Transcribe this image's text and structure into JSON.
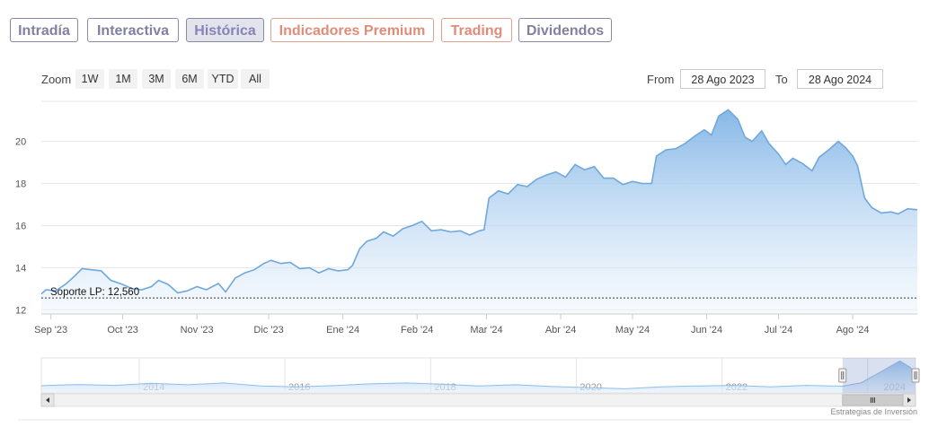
{
  "tabs": [
    {
      "label": "Intradía",
      "active": false,
      "premium": false
    },
    {
      "label": "Interactiva",
      "active": false,
      "premium": false
    },
    {
      "label": "Histórica",
      "active": true,
      "premium": false
    },
    {
      "label": "Indicadores Premium",
      "active": false,
      "premium": true
    },
    {
      "label": "Trading",
      "active": false,
      "premium": true
    },
    {
      "label": "Dividendos",
      "active": false,
      "premium": false
    }
  ],
  "zoom": {
    "label": "Zoom",
    "buttons": [
      "1W",
      "1M",
      "3M",
      "6M",
      "YTD",
      "All"
    ]
  },
  "range": {
    "from_label": "From",
    "from_value": "28 Ago 2023",
    "to_label": "To",
    "to_value": "28 Ago 2024"
  },
  "credit": "Estrategias de Inversión",
  "colors": {
    "line": "#6fa8dc",
    "fill_top": "#80b4e6",
    "fill_bottom": "#eef5fc",
    "support": "#333333"
  },
  "chart_data": {
    "type": "area",
    "x_ticks": [
      "Sep '23",
      "Oct '23",
      "Nov '23",
      "Dic '23",
      "Ene '24",
      "Feb '24",
      "Mar '24",
      "Abr '24",
      "May '24",
      "Jun '24",
      "Jul '24",
      "Ago '24"
    ],
    "y_ticks": [
      12,
      14,
      16,
      18,
      20
    ],
    "ylim": [
      11.8,
      21.9
    ],
    "xlim": [
      "2023-08-28",
      "2024-08-28"
    ],
    "grid": true,
    "support_line": {
      "label": "Soporte LP: 12,560",
      "value": 12.56
    },
    "series": [
      {
        "points": [
          [
            "2023-08-28",
            12.75
          ],
          [
            "2023-08-30",
            12.95
          ],
          [
            "2023-09-03",
            12.9
          ],
          [
            "2023-09-07",
            13.2
          ],
          [
            "2023-09-10",
            13.5
          ],
          [
            "2023-09-14",
            13.95
          ],
          [
            "2023-09-18",
            13.9
          ],
          [
            "2023-09-22",
            13.85
          ],
          [
            "2023-09-26",
            13.4
          ],
          [
            "2023-10-01",
            13.2
          ],
          [
            "2023-10-05",
            13.0
          ],
          [
            "2023-10-09",
            12.95
          ],
          [
            "2023-10-13",
            13.1
          ],
          [
            "2023-10-16",
            13.4
          ],
          [
            "2023-10-20",
            13.2
          ],
          [
            "2023-10-24",
            12.8
          ],
          [
            "2023-10-28",
            12.9
          ],
          [
            "2023-11-01",
            13.1
          ],
          [
            "2023-11-05",
            12.95
          ],
          [
            "2023-11-10",
            13.25
          ],
          [
            "2023-11-13",
            12.85
          ],
          [
            "2023-11-17",
            13.5
          ],
          [
            "2023-11-21",
            13.75
          ],
          [
            "2023-11-25",
            13.9
          ],
          [
            "2023-11-29",
            14.2
          ],
          [
            "2023-12-02",
            14.35
          ],
          [
            "2023-12-06",
            14.2
          ],
          [
            "2023-12-10",
            14.25
          ],
          [
            "2023-12-14",
            13.95
          ],
          [
            "2023-12-18",
            14.0
          ],
          [
            "2023-12-22",
            13.75
          ],
          [
            "2023-12-26",
            13.95
          ],
          [
            "2023-12-30",
            13.85
          ],
          [
            "2024-01-03",
            13.9
          ],
          [
            "2024-01-05",
            14.1
          ],
          [
            "2024-01-08",
            14.9
          ],
          [
            "2024-01-11",
            15.25
          ],
          [
            "2024-01-15",
            15.4
          ],
          [
            "2024-01-18",
            15.7
          ],
          [
            "2024-01-22",
            15.5
          ],
          [
            "2024-01-26",
            15.85
          ],
          [
            "2024-01-30",
            16.0
          ],
          [
            "2024-02-03",
            16.2
          ],
          [
            "2024-02-07",
            15.75
          ],
          [
            "2024-02-11",
            15.8
          ],
          [
            "2024-02-15",
            15.7
          ],
          [
            "2024-02-19",
            15.75
          ],
          [
            "2024-02-23",
            15.55
          ],
          [
            "2024-02-27",
            15.75
          ],
          [
            "2024-02-29",
            15.8
          ],
          [
            "2024-03-02",
            17.3
          ],
          [
            "2024-03-06",
            17.65
          ],
          [
            "2024-03-10",
            17.5
          ],
          [
            "2024-03-14",
            17.95
          ],
          [
            "2024-03-18",
            17.85
          ],
          [
            "2024-03-22",
            18.2
          ],
          [
            "2024-03-26",
            18.4
          ],
          [
            "2024-03-30",
            18.55
          ],
          [
            "2024-04-03",
            18.3
          ],
          [
            "2024-04-07",
            18.9
          ],
          [
            "2024-04-11",
            18.65
          ],
          [
            "2024-04-15",
            18.8
          ],
          [
            "2024-04-19",
            18.25
          ],
          [
            "2024-04-23",
            18.25
          ],
          [
            "2024-04-27",
            17.95
          ],
          [
            "2024-05-01",
            18.1
          ],
          [
            "2024-05-05",
            18.0
          ],
          [
            "2024-05-09",
            18.0
          ],
          [
            "2024-05-11",
            19.3
          ],
          [
            "2024-05-15",
            19.6
          ],
          [
            "2024-05-19",
            19.65
          ],
          [
            "2024-05-23",
            19.9
          ],
          [
            "2024-05-27",
            20.25
          ],
          [
            "2024-05-31",
            20.55
          ],
          [
            "2024-06-03",
            20.3
          ],
          [
            "2024-06-06",
            21.2
          ],
          [
            "2024-06-10",
            21.5
          ],
          [
            "2024-06-14",
            21.05
          ],
          [
            "2024-06-17",
            20.2
          ],
          [
            "2024-06-20",
            20.0
          ],
          [
            "2024-06-24",
            20.5
          ],
          [
            "2024-06-27",
            19.9
          ],
          [
            "2024-07-01",
            19.4
          ],
          [
            "2024-07-04",
            18.9
          ],
          [
            "2024-07-07",
            19.2
          ],
          [
            "2024-07-11",
            18.95
          ],
          [
            "2024-07-15",
            18.6
          ],
          [
            "2024-07-18",
            19.25
          ],
          [
            "2024-07-22",
            19.6
          ],
          [
            "2024-07-26",
            20.0
          ],
          [
            "2024-07-29",
            19.7
          ],
          [
            "2024-08-01",
            19.3
          ],
          [
            "2024-08-03",
            18.85
          ],
          [
            "2024-08-06",
            17.3
          ],
          [
            "2024-08-09",
            16.85
          ],
          [
            "2024-08-13",
            16.6
          ],
          [
            "2024-08-17",
            16.65
          ],
          [
            "2024-08-20",
            16.55
          ],
          [
            "2024-08-24",
            16.8
          ],
          [
            "2024-08-28",
            16.75
          ]
        ]
      }
    ],
    "navigator": {
      "x_ticks": [
        "2014",
        "2016",
        "2018",
        "2020",
        "2022",
        "2024"
      ],
      "xlim": [
        "2012-08-28",
        "2024-08-28"
      ],
      "selection": [
        "2023-08-28",
        "2024-08-28"
      ],
      "points": [
        [
          "2012-08-28",
          13.0
        ],
        [
          "2013-03-01",
          13.4
        ],
        [
          "2013-09-01",
          13.1
        ],
        [
          "2014-03-01",
          13.8
        ],
        [
          "2014-09-01",
          13.3
        ],
        [
          "2015-03-01",
          13.9
        ],
        [
          "2015-09-01",
          12.9
        ],
        [
          "2016-03-01",
          12.6
        ],
        [
          "2016-09-01",
          13.0
        ],
        [
          "2017-03-01",
          13.6
        ],
        [
          "2017-09-01",
          13.9
        ],
        [
          "2018-03-01",
          13.5
        ],
        [
          "2018-09-01",
          12.9
        ],
        [
          "2019-03-01",
          13.3
        ],
        [
          "2019-09-01",
          12.7
        ],
        [
          "2020-03-01",
          12.3
        ],
        [
          "2020-09-01",
          11.9
        ],
        [
          "2021-03-01",
          12.6
        ],
        [
          "2021-09-01",
          12.9
        ],
        [
          "2022-03-01",
          13.1
        ],
        [
          "2022-09-01",
          12.6
        ],
        [
          "2023-03-01",
          13.1
        ],
        [
          "2023-08-28",
          12.8
        ],
        [
          "2023-12-01",
          14.0
        ],
        [
          "2024-03-01",
          17.5
        ],
        [
          "2024-06-10",
          21.5
        ],
        [
          "2024-08-01",
          19.3
        ],
        [
          "2024-08-28",
          16.75
        ]
      ],
      "ylim": [
        10.5,
        22.5
      ]
    }
  }
}
